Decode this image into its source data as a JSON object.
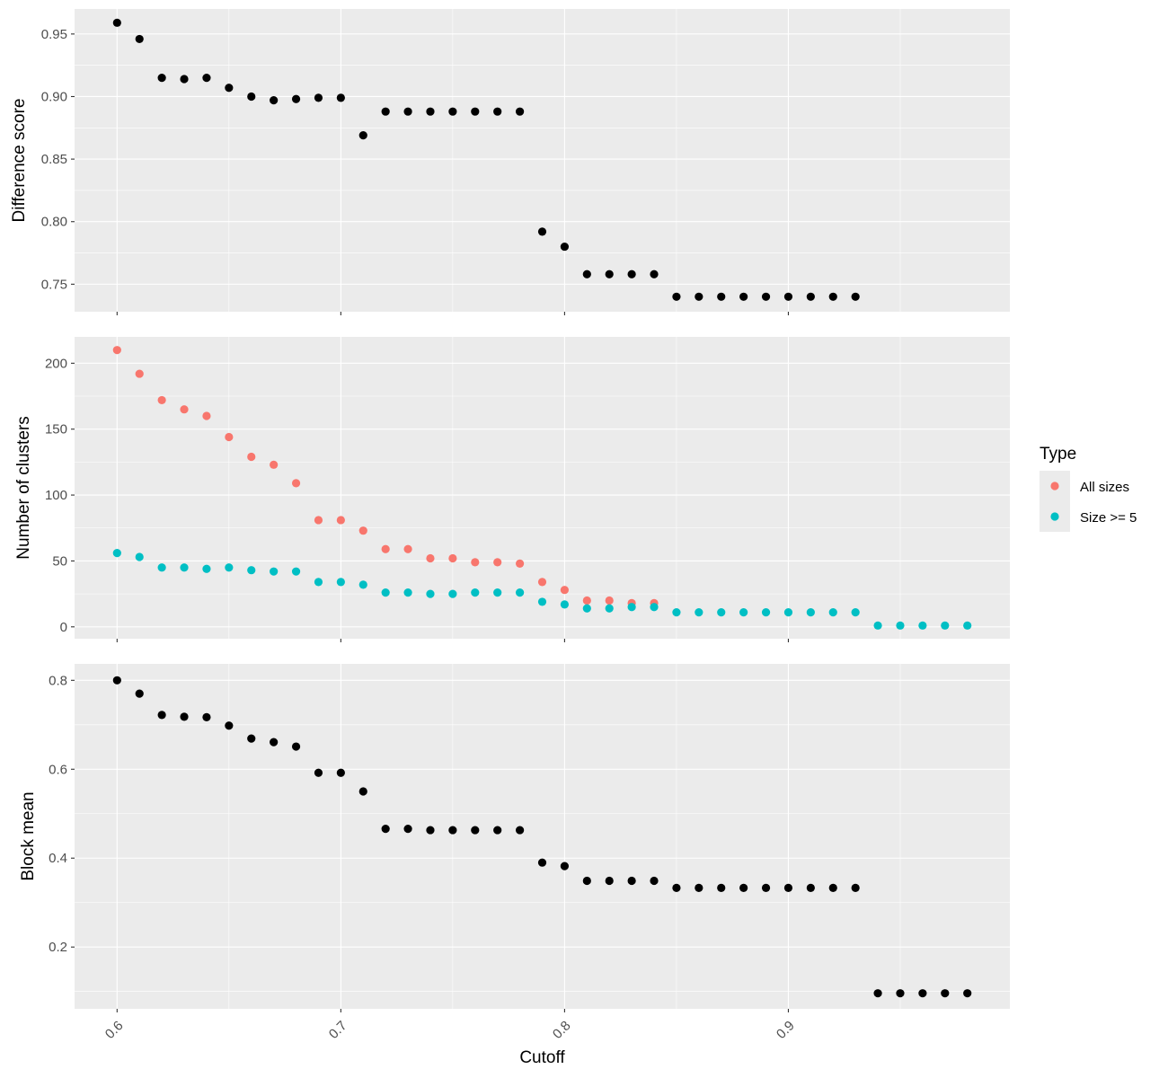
{
  "chart_data": {
    "type": "scatter",
    "layout": "three vertically stacked panels sharing the x axis",
    "xlabel": "Cutoff",
    "x_ticks": [
      "0.6",
      "0.7",
      "0.8",
      "0.9"
    ],
    "xlim": [
      0.581,
      0.999
    ],
    "grid": true,
    "legend": {
      "title": "Type",
      "placement": "right",
      "entries": [
        {
          "label": "All sizes",
          "color": "#F8766D"
        },
        {
          "label": "Size >= 5",
          "color": "#00BFC4"
        }
      ]
    },
    "panels": [
      {
        "ylabel": "Difference score",
        "ylim": [
          0.728,
          0.97
        ],
        "y_ticks": [
          "0.75",
          "0.80",
          "0.85",
          "0.90",
          "0.95"
        ],
        "series": [
          {
            "color": "#000000",
            "x": [
              0.6,
              0.61,
              0.62,
              0.63,
              0.64,
              0.65,
              0.66,
              0.67,
              0.68,
              0.69,
              0.7,
              0.71,
              0.72,
              0.73,
              0.74,
              0.75,
              0.76,
              0.77,
              0.78,
              0.79,
              0.8,
              0.81,
              0.82,
              0.83,
              0.84,
              0.85,
              0.86,
              0.87,
              0.88,
              0.89,
              0.9,
              0.91,
              0.92,
              0.93
            ],
            "y": [
              0.959,
              0.946,
              0.915,
              0.914,
              0.915,
              0.907,
              0.9,
              0.897,
              0.898,
              0.899,
              0.899,
              0.869,
              0.888,
              0.888,
              0.888,
              0.888,
              0.888,
              0.888,
              0.888,
              0.792,
              0.78,
              0.758,
              0.758,
              0.758,
              0.758,
              0.74,
              0.74,
              0.74,
              0.74,
              0.74,
              0.74,
              0.74,
              0.74,
              0.74
            ]
          }
        ]
      },
      {
        "ylabel": "Number of clusters",
        "ylim": [
          -9,
          220
        ],
        "y_ticks": [
          "0",
          "50",
          "100",
          "150",
          "200"
        ],
        "series": [
          {
            "name": "All sizes",
            "color": "#F8766D",
            "x": [
              0.6,
              0.61,
              0.62,
              0.63,
              0.64,
              0.65,
              0.66,
              0.67,
              0.68,
              0.69,
              0.7,
              0.71,
              0.72,
              0.73,
              0.74,
              0.75,
              0.76,
              0.77,
              0.78,
              0.79,
              0.8,
              0.81,
              0.82,
              0.83,
              0.84
            ],
            "y": [
              210,
              192,
              172,
              165,
              160,
              144,
              129,
              123,
              109,
              81,
              81,
              73,
              59,
              59,
              52,
              52,
              49,
              49,
              48,
              34,
              28,
              20,
              20,
              18,
              18
            ]
          },
          {
            "name": "Size >= 5",
            "color": "#00BFC4",
            "x": [
              0.6,
              0.61,
              0.62,
              0.63,
              0.64,
              0.65,
              0.66,
              0.67,
              0.68,
              0.69,
              0.7,
              0.71,
              0.72,
              0.73,
              0.74,
              0.75,
              0.76,
              0.77,
              0.78,
              0.79,
              0.8,
              0.81,
              0.82,
              0.83,
              0.84,
              0.85,
              0.86,
              0.87,
              0.88,
              0.89,
              0.9,
              0.91,
              0.92,
              0.93,
              0.94,
              0.95,
              0.96,
              0.97,
              0.98
            ],
            "y": [
              56,
              53,
              45,
              45,
              44,
              45,
              43,
              42,
              42,
              34,
              34,
              32,
              26,
              26,
              25,
              25,
              26,
              26,
              26,
              19,
              17,
              14,
              14,
              15,
              15,
              11,
              11,
              11,
              11,
              11,
              11,
              11,
              11,
              11,
              1,
              1,
              1,
              1,
              1
            ]
          }
        ]
      },
      {
        "ylabel": "Block mean",
        "ylim": [
          0.061,
          0.837
        ],
        "y_ticks": [
          "0.2",
          "0.4",
          "0.6",
          "0.8"
        ],
        "series": [
          {
            "color": "#000000",
            "x": [
              0.6,
              0.61,
              0.62,
              0.63,
              0.64,
              0.65,
              0.66,
              0.67,
              0.68,
              0.69,
              0.7,
              0.71,
              0.72,
              0.73,
              0.74,
              0.75,
              0.76,
              0.77,
              0.78,
              0.79,
              0.8,
              0.81,
              0.82,
              0.83,
              0.84,
              0.85,
              0.86,
              0.87,
              0.88,
              0.89,
              0.9,
              0.91,
              0.92,
              0.93,
              0.94,
              0.95,
              0.96,
              0.97,
              0.98
            ],
            "y": [
              0.8,
              0.77,
              0.722,
              0.718,
              0.717,
              0.698,
              0.669,
              0.661,
              0.651,
              0.592,
              0.592,
              0.55,
              0.466,
              0.466,
              0.463,
              0.463,
              0.463,
              0.463,
              0.463,
              0.39,
              0.382,
              0.349,
              0.349,
              0.349,
              0.349,
              0.333,
              0.333,
              0.333,
              0.333,
              0.333,
              0.333,
              0.333,
              0.333,
              0.333,
              0.096,
              0.096,
              0.096,
              0.096,
              0.096
            ]
          }
        ]
      }
    ]
  }
}
